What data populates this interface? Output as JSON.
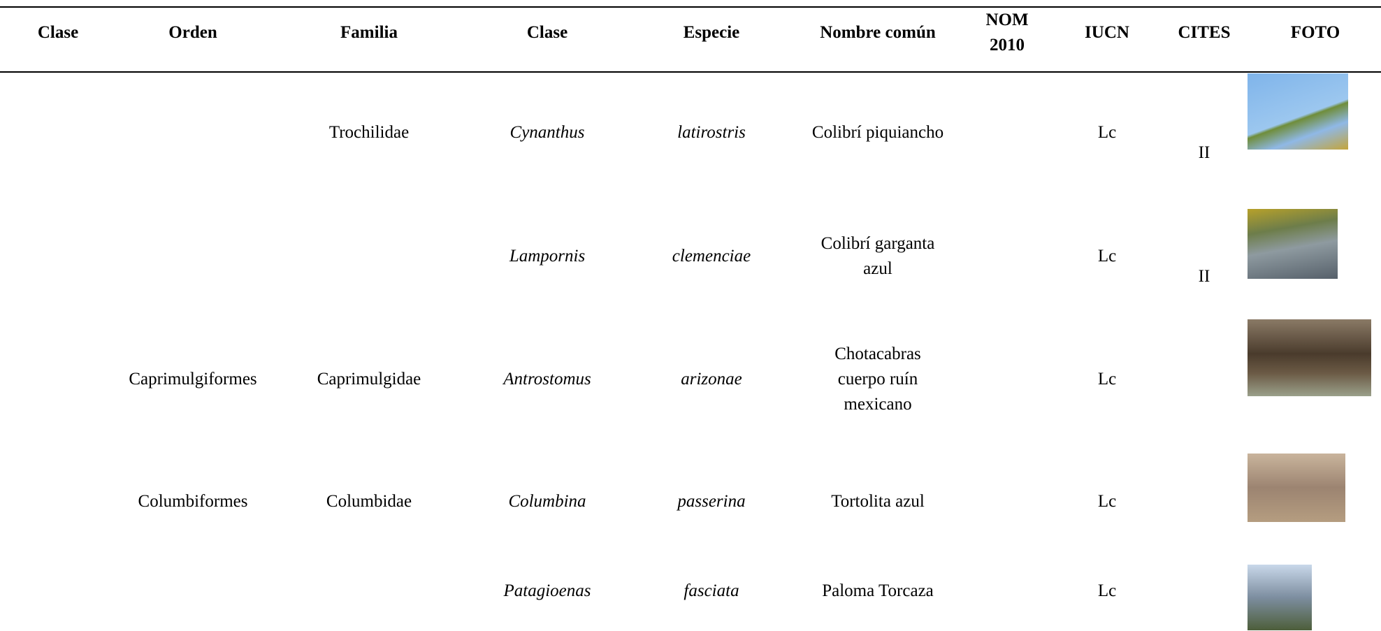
{
  "table": {
    "header": [
      "Clase",
      "Orden",
      "Familia",
      "Clase",
      "Especie",
      "Nombre común",
      [
        "NOM",
        "2010"
      ],
      "IUCN",
      "CITES",
      "FOTO"
    ],
    "rows": [
      {
        "familia": "Trochilidae",
        "genero": "Cynanthus",
        "especie": "latirostris",
        "nombre_comun": [
          "Colibrí piquiancho"
        ],
        "iucn": "Lc",
        "cites": "II"
      },
      {
        "genero": "Lampornis",
        "especie": "clemenciae",
        "nombre_comun": [
          "Colibrí garganta",
          "azul"
        ],
        "iucn": "Lc",
        "cites": "II"
      },
      {
        "orden": "Caprimulgiformes",
        "familia": "Caprimulgidae",
        "genero": "Antrostomus",
        "especie": "arizonae",
        "nombre_comun": [
          "Chotacabras",
          "cuerpo ruín",
          "mexicano"
        ],
        "iucn": "Lc"
      },
      {
        "orden": "Columbiformes",
        "familia": "Columbidae",
        "genero": "Columbina",
        "especie": "passerina",
        "nombre_comun": [
          "Tortolita azul"
        ],
        "iucn": "Lc"
      },
      {
        "genero": "Patagioenas",
        "especie": "fasciata",
        "nombre_comun": [
          "Paloma Torcaza"
        ],
        "iucn": "Lc"
      }
    ]
  }
}
